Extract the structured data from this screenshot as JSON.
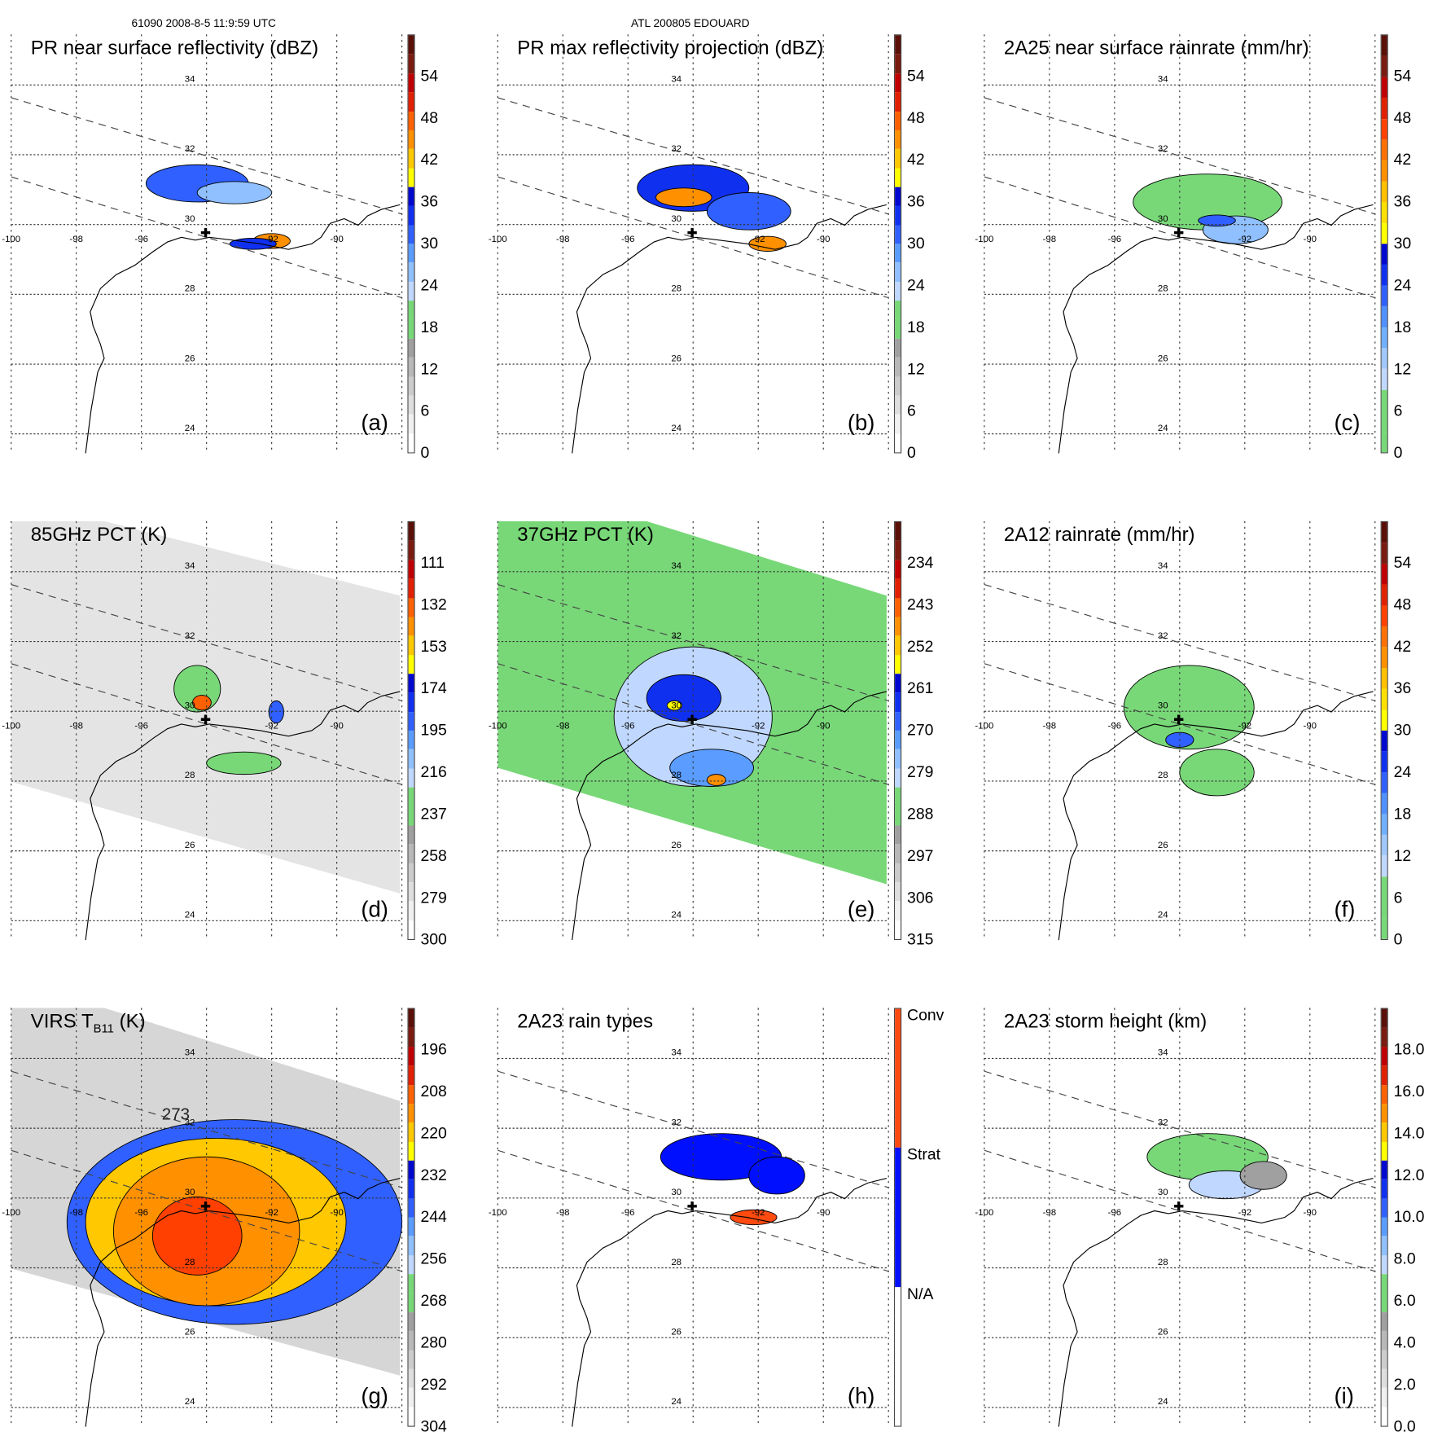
{
  "header": {
    "orbit_time": "61090 2008-8-5 11:9:59 UTC",
    "storm": "ATL 200805 EDOUARD"
  },
  "chart_data": {
    "type": "heatmap",
    "map": {
      "lon_ticks": [
        "-100",
        "-98",
        "-96",
        "-92",
        "-90"
      ],
      "lat_ticks": [
        "34",
        "32",
        "30",
        "28",
        "26",
        "24"
      ],
      "lon_range": [
        -100,
        -88
      ],
      "lat_range": [
        23.5,
        35.5
      ]
    },
    "panels": [
      {
        "id": "a",
        "title": "PR near surface reflectivity (dBZ)",
        "label": "(a)",
        "kind": "pr",
        "ticks": [
          "54",
          "48",
          "42",
          "36",
          "30",
          "24",
          "18",
          "12",
          "6",
          "0"
        ],
        "palette": "dbz"
      },
      {
        "id": "b",
        "title": "PR max reflectivity projection (dBZ)",
        "label": "(b)",
        "kind": "prmax",
        "ticks": [
          "54",
          "48",
          "42",
          "36",
          "30",
          "24",
          "18",
          "12",
          "6",
          "0"
        ],
        "palette": "dbz"
      },
      {
        "id": "c",
        "title": "2A25 near surface rainrate (mm/hr)",
        "label": "(c)",
        "kind": "rain",
        "ticks": [
          "54",
          "48",
          "42",
          "36",
          "30",
          "24",
          "18",
          "12",
          "6",
          "0"
        ],
        "palette": "rain"
      },
      {
        "id": "d",
        "title": "85GHz PCT (K)",
        "label": "(d)",
        "kind": "p85",
        "ticks": [
          "111",
          "132",
          "153",
          "174",
          "195",
          "216",
          "237",
          "258",
          "279",
          "300"
        ],
        "palette": "dbz"
      },
      {
        "id": "e",
        "title": "37GHz PCT (K)",
        "label": "(e)",
        "kind": "p37",
        "ticks": [
          "234",
          "243",
          "252",
          "261",
          "270",
          "279",
          "288",
          "297",
          "306",
          "315"
        ],
        "palette": "dbz"
      },
      {
        "id": "f",
        "title": "2A12 rainrate (mm/hr)",
        "label": "(f)",
        "kind": "a12",
        "ticks": [
          "54",
          "48",
          "42",
          "36",
          "30",
          "24",
          "18",
          "12",
          "6",
          "0"
        ],
        "palette": "rain"
      },
      {
        "id": "g",
        "title": "VIRS T",
        "title_sub": "B11",
        "title_after": " (K)",
        "label": "(g)",
        "kind": "virs",
        "ticks": [
          "196",
          "208",
          "220",
          "232",
          "244",
          "256",
          "268",
          "280",
          "292",
          "304"
        ],
        "palette": "dbz",
        "contour_label": "273"
      },
      {
        "id": "h",
        "title": "2A23 rain types",
        "label": "(h)",
        "kind": "types",
        "ticks": [
          "Conv",
          "Strat",
          "N/A"
        ],
        "palette": "types"
      },
      {
        "id": "i",
        "title": "2A23 storm height (km)",
        "label": "(i)",
        "kind": "height",
        "ticks": [
          "18.0",
          "16.0",
          "14.0",
          "12.0",
          "10.0",
          "8.0",
          "6.0",
          "4.0",
          "2.0",
          "0.0"
        ],
        "palette": "dbz"
      }
    ]
  },
  "palettes": {
    "dbz": [
      "#ffffff",
      "#f0f0f0",
      "#dedede",
      "#cccccc",
      "#b8b8b8",
      "#a0a0a0",
      "#78d878",
      "#78d878",
      "#c0d8ff",
      "#90c0ff",
      "#5a9cff",
      "#3060ff",
      "#1030f0",
      "#0008d0",
      "#ffff00",
      "#ffc800",
      "#ff9000",
      "#ff6000",
      "#e02000",
      "#c00000",
      "#7a1a10",
      "#5a1008"
    ],
    "rain": [
      "#78d878",
      "#78d878",
      "#78d878",
      "#c0d8ff",
      "#a0c8ff",
      "#70b0ff",
      "#5090ff",
      "#3060ff",
      "#1030f0",
      "#0008d0",
      "#ffff00",
      "#ffe000",
      "#ffc000",
      "#ff9000",
      "#ff7000",
      "#ff4000",
      "#e02000",
      "#c00000",
      "#7a1a10",
      "#5a1008"
    ],
    "types": [
      "#ffffff",
      "#0010ff",
      "#ff4a10"
    ]
  }
}
